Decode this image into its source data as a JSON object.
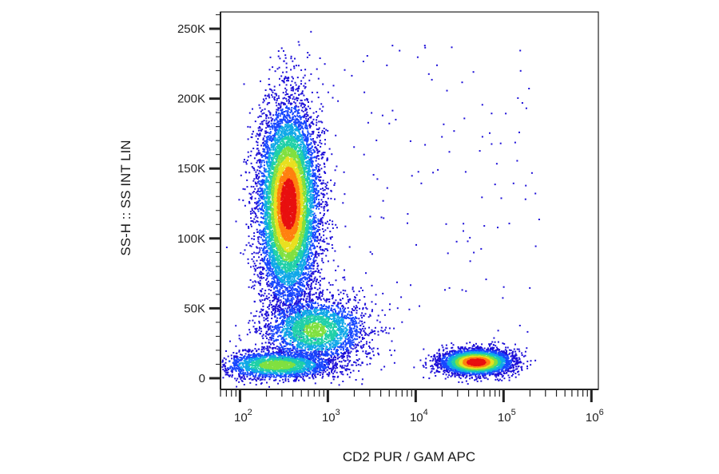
{
  "chart_data": {
    "type": "scatter",
    "xlabel": "CD2 PUR / GAM APC",
    "ylabel": "SS-H :: SS INT LIN",
    "x_scale": "log",
    "xlim": [
      60,
      1200000
    ],
    "ylim": [
      -8000,
      262000
    ],
    "x_ticks": [
      {
        "value": 100,
        "base": "10",
        "exp": "2"
      },
      {
        "value": 1000,
        "base": "10",
        "exp": "3"
      },
      {
        "value": 10000,
        "base": "10",
        "exp": "4"
      },
      {
        "value": 100000,
        "base": "10",
        "exp": "5"
      },
      {
        "value": 1000000,
        "base": "10",
        "exp": "6"
      }
    ],
    "y_ticks": [
      {
        "value": 0,
        "label": "0"
      },
      {
        "value": 50000,
        "label": "50K"
      },
      {
        "value": 100000,
        "label": "100K"
      },
      {
        "value": 150000,
        "label": "150K"
      },
      {
        "value": 200000,
        "label": "200K"
      },
      {
        "value": 250000,
        "label": "250K"
      }
    ],
    "populations": [
      {
        "id": "granulocytes",
        "center_x": 350,
        "center_y": 125000,
        "sd_log10_x": 0.17,
        "sd_y": 35000,
        "count": 9500,
        "peak_density": 1.0
      },
      {
        "id": "monocytes",
        "center_x": 700,
        "center_y": 35000,
        "sd_log10_x": 0.3,
        "sd_y": 12000,
        "count": 2600,
        "peak_density": 0.55
      },
      {
        "id": "lymphocytes-cd2-negative",
        "center_x": 260,
        "center_y": 10000,
        "sd_log10_x": 0.33,
        "sd_y": 5000,
        "count": 2200,
        "peak_density": 0.6
      },
      {
        "id": "lymphocytes-cd2-positive",
        "center_x": 48000,
        "center_y": 12000,
        "sd_log10_x": 0.2,
        "sd_y": 4500,
        "count": 3800,
        "peak_density": 1.0
      }
    ],
    "colormap": [
      "#1e10d8",
      "#1848ff",
      "#10a8e8",
      "#20d0a8",
      "#80e040",
      "#e8e020",
      "#ff8010",
      "#e81010"
    ],
    "grid": false,
    "legend": "none"
  }
}
